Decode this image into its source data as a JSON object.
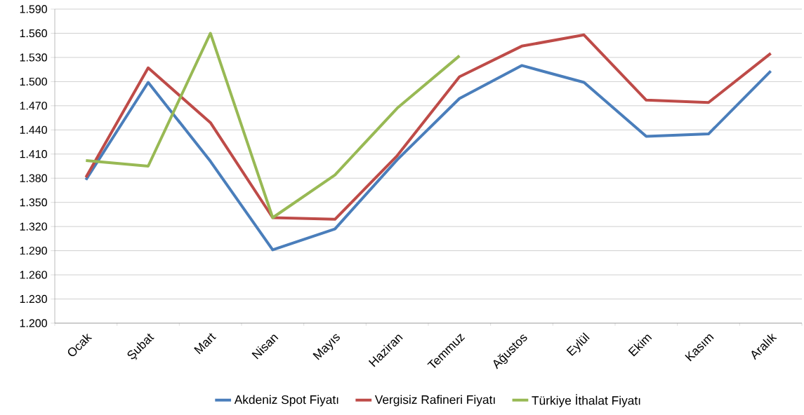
{
  "chart_data": {
    "type": "line",
    "categories": [
      "Ocak",
      "Şubat",
      "Mart",
      "Nisan",
      "Mayıs",
      "Haziran",
      "Temmuz",
      "Ağustos",
      "Eylül",
      "Ekim",
      "Kasım",
      "Aralık"
    ],
    "series": [
      {
        "name": "Akdeniz Spot Fiyatı",
        "color": "#4a7ebb",
        "values": [
          1378,
          1499,
          1401,
          1291,
          1317,
          1403,
          1479,
          1520,
          1499,
          1432,
          1435,
          1513
        ]
      },
      {
        "name": "Vergisiz Rafineri Fiyatı",
        "color": "#be4b48",
        "values": [
          1381,
          1517,
          1449,
          1331,
          1329,
          1408,
          1506,
          1544,
          1558,
          1477,
          1474,
          1535
        ]
      },
      {
        "name": "Türkiye İthalat Fiyatı",
        "color": "#98b954",
        "values": [
          1402,
          1395,
          1560,
          1331,
          1384,
          1467,
          1532,
          null,
          null,
          null,
          null,
          null
        ]
      }
    ],
    "ylim": [
      1200,
      1590
    ],
    "yticks": [
      {
        "value": 1200,
        "label": "1.200"
      },
      {
        "value": 1230,
        "label": "1.230"
      },
      {
        "value": 1260,
        "label": "1.260"
      },
      {
        "value": 1290,
        "label": "1.290"
      },
      {
        "value": 1320,
        "label": "1.320"
      },
      {
        "value": 1350,
        "label": "1.350"
      },
      {
        "value": 1380,
        "label": "1.380"
      },
      {
        "value": 1410,
        "label": "1.410"
      },
      {
        "value": 1440,
        "label": "1.440"
      },
      {
        "value": 1470,
        "label": "1.470"
      },
      {
        "value": 1500,
        "label": "1.500"
      },
      {
        "value": 1530,
        "label": "1.530"
      },
      {
        "value": 1560,
        "label": "1.560"
      },
      {
        "value": 1590,
        "label": "1.590"
      }
    ],
    "grid": "y",
    "legend": "bottom",
    "marker": "none",
    "line_style": "solid"
  }
}
